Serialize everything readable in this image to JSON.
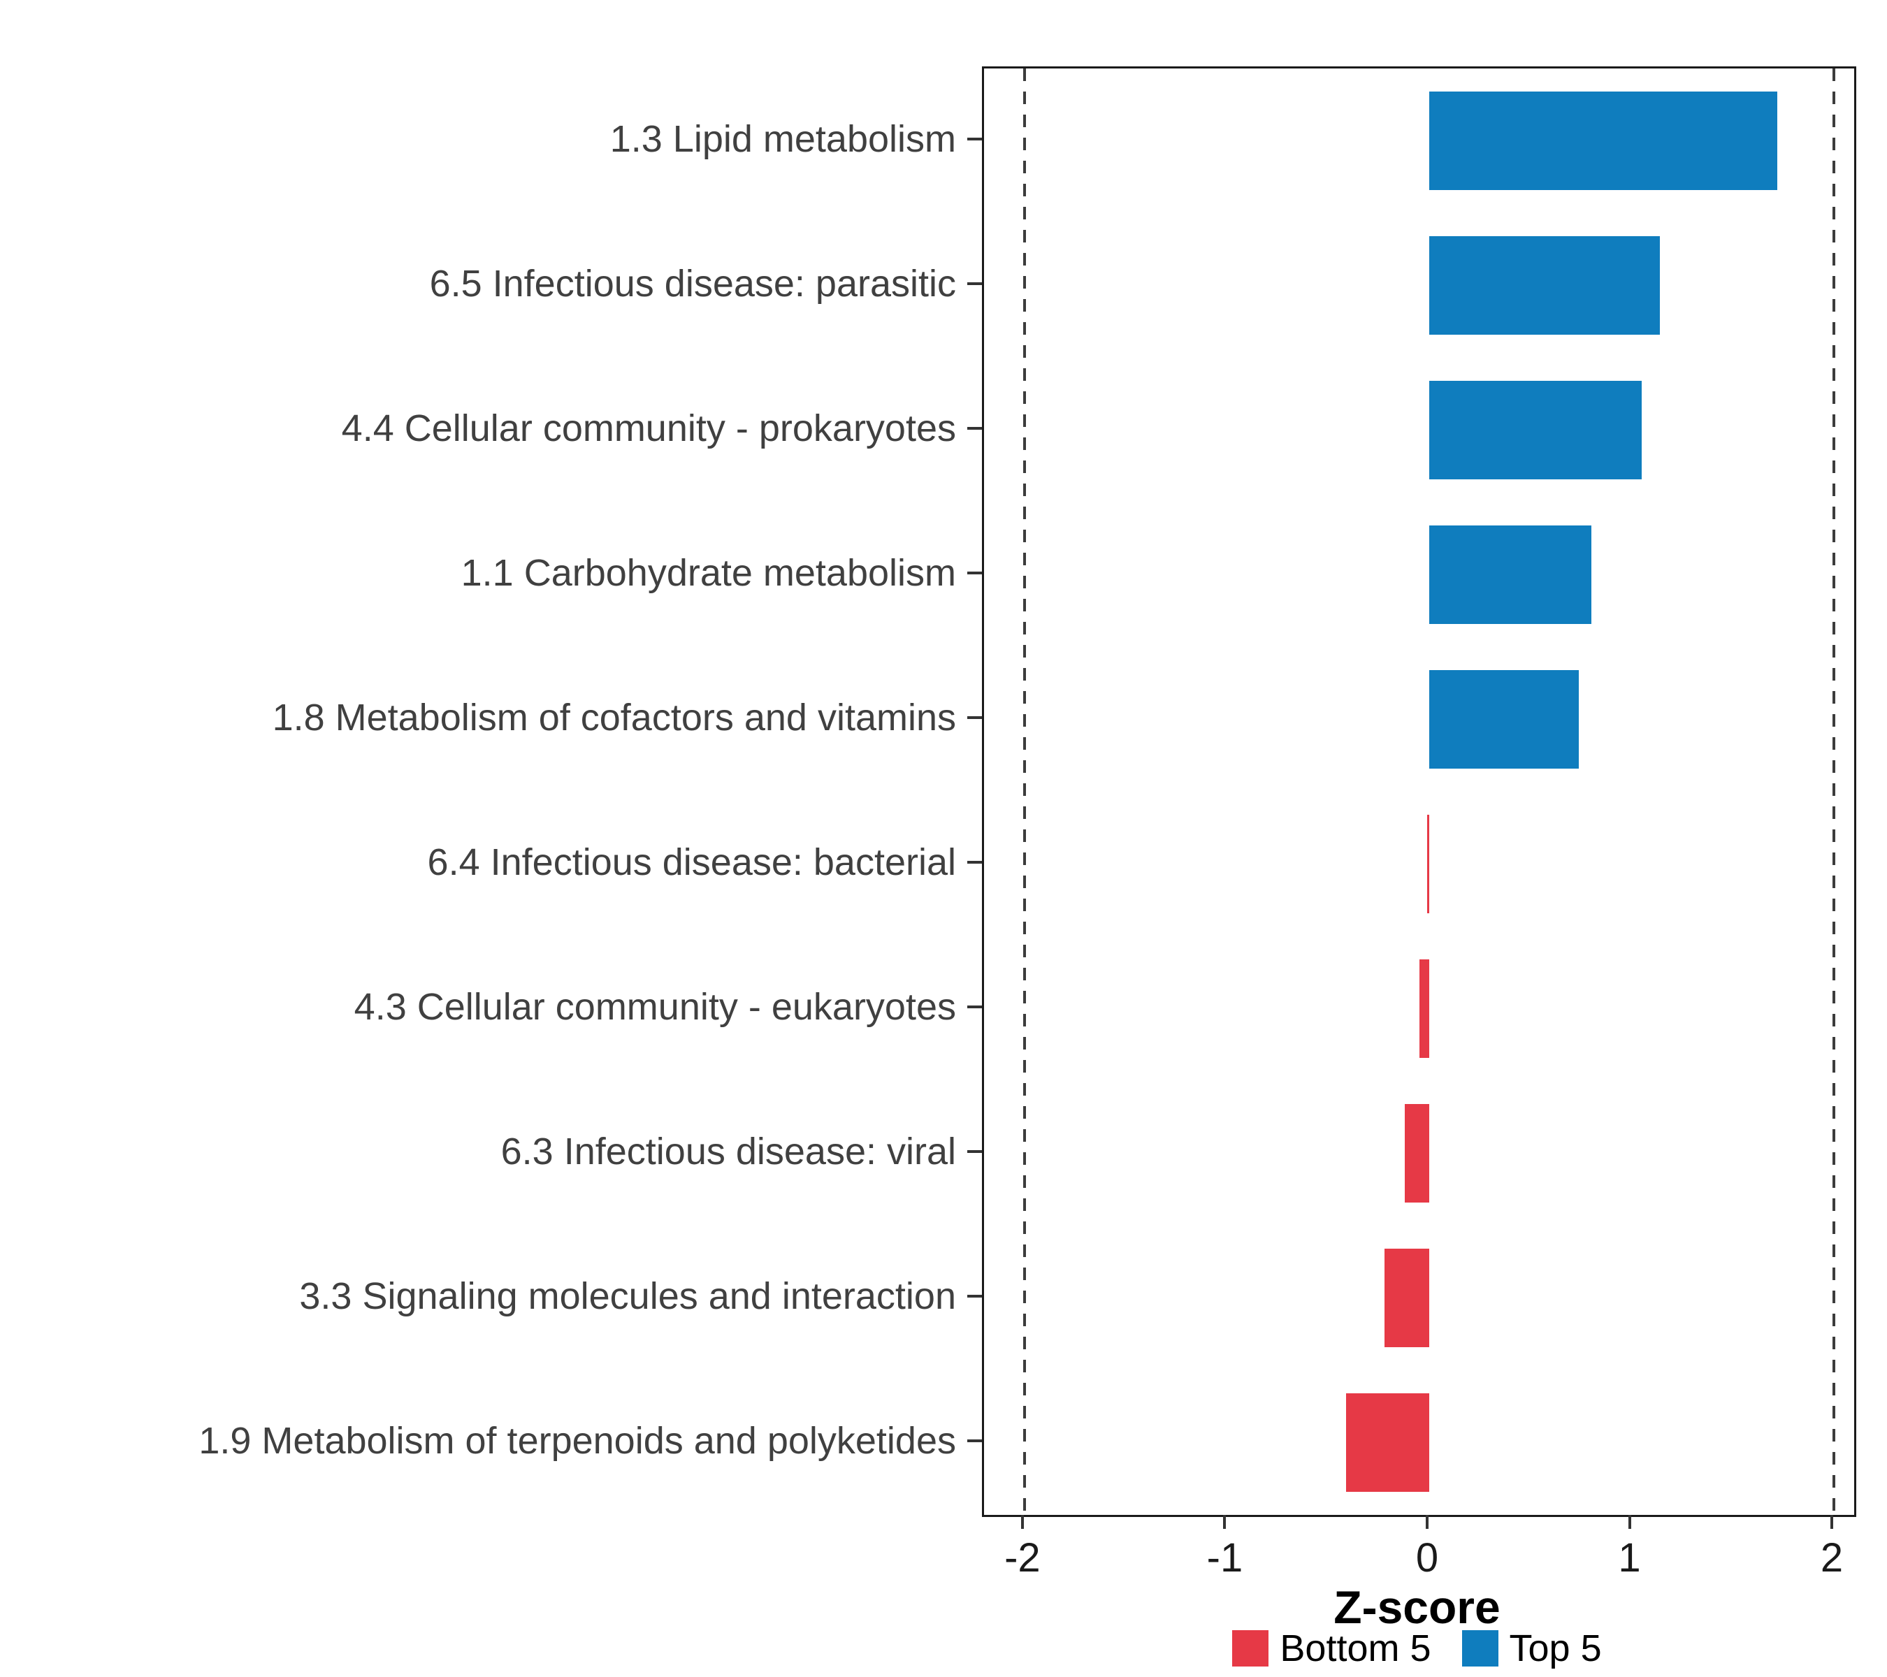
{
  "chart_data": {
    "type": "bar",
    "orientation": "horizontal",
    "title": "",
    "xlabel": "Z-score",
    "ylabel": "",
    "xlim": [
      -2.2,
      2.1
    ],
    "x_ticks": [
      "-2",
      "-1",
      "0",
      "1",
      "2"
    ],
    "x_tick_values": [
      -2,
      -1,
      0,
      1,
      2
    ],
    "reference_lines": [
      -2,
      2
    ],
    "grid": "off",
    "legend_position": "bottom",
    "categories": [
      "1.3 Lipid metabolism",
      "6.5 Infectious disease: parasitic",
      "4.4 Cellular community - prokaryotes",
      "1.1 Carbohydrate metabolism",
      "1.8 Metabolism of cofactors and vitamins",
      "6.4 Infectious disease: bacterial",
      "4.3 Cellular community - eukaryotes",
      "6.3 Infectious disease: viral",
      "3.3 Signaling molecules and interaction",
      "1.9 Metabolism of terpenoids and polyketides"
    ],
    "values": [
      1.72,
      1.14,
      1.05,
      0.8,
      0.74,
      -0.01,
      -0.05,
      -0.12,
      -0.22,
      -0.41
    ],
    "groups": [
      "Top 5",
      "Top 5",
      "Top 5",
      "Top 5",
      "Top 5",
      "Bottom 5",
      "Bottom 5",
      "Bottom 5",
      "Bottom 5",
      "Bottom 5"
    ],
    "colors": {
      "Top 5": "#0F7DBE",
      "Bottom 5": "#E63946"
    },
    "legend": [
      {
        "label": "Bottom 5",
        "color": "#E63946"
      },
      {
        "label": "Top 5",
        "color": "#0F7DBE"
      }
    ]
  }
}
